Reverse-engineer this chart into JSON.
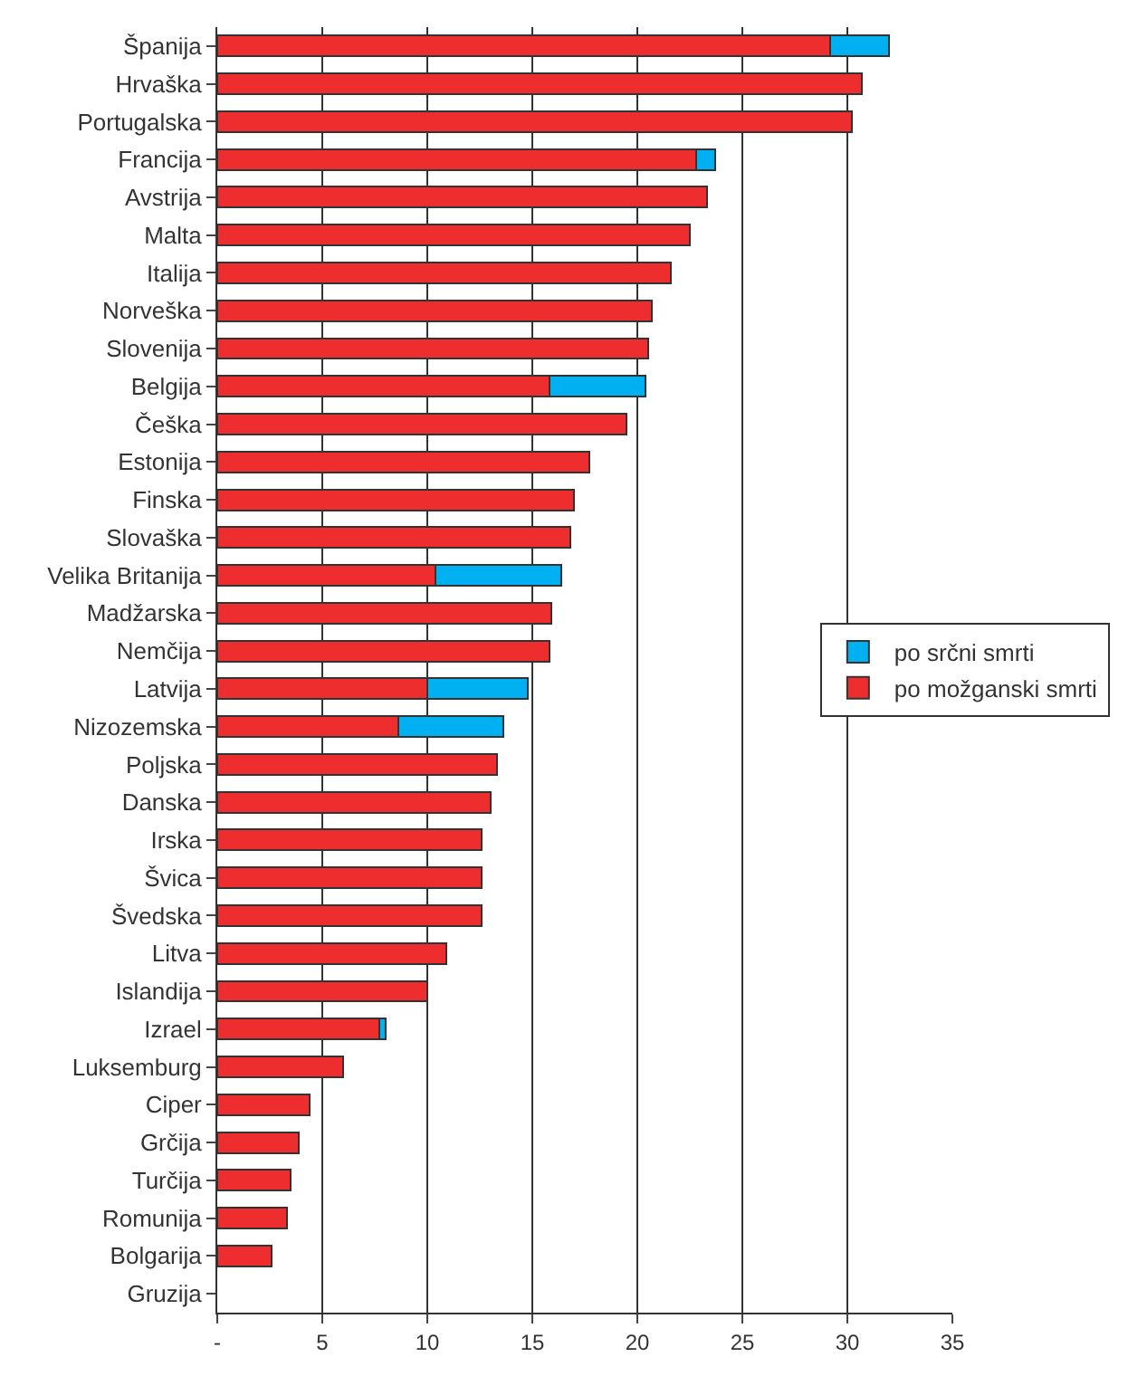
{
  "chart_data": {
    "type": "bar",
    "orientation": "horizontal",
    "stacked": true,
    "categories": [
      "Španija",
      "Hrvaška",
      "Portugalska",
      "Francija",
      "Avstrija",
      "Malta",
      "Italija",
      "Norveška",
      "Slovenija",
      "Belgija",
      "Češka",
      "Estonija",
      "Finska",
      "Slovaška",
      "Velika Britanija",
      "Madžarska",
      "Nemčija",
      "Latvija",
      "Nizozemska",
      "Poljska",
      "Danska",
      "Irska",
      "Švica",
      "Švedska",
      "Litva",
      "Islandija",
      "Izrael",
      "Luksemburg",
      "Ciper",
      "Grčija",
      "Turčija",
      "Romunija",
      "Bolgarija",
      "Gruzija"
    ],
    "series": [
      {
        "name": "po možganski smrti",
        "color": "#ee2e2e",
        "values": [
          29.2,
          30.7,
          30.2,
          22.8,
          23.3,
          22.5,
          21.6,
          20.7,
          20.5,
          15.8,
          19.5,
          17.7,
          17.0,
          16.8,
          10.4,
          15.9,
          15.8,
          10.0,
          8.6,
          13.3,
          13.0,
          12.6,
          12.6,
          12.6,
          10.9,
          10.0,
          7.7,
          6.0,
          4.4,
          3.9,
          3.5,
          3.3,
          2.6,
          null
        ]
      },
      {
        "name": "po srčni smrti",
        "color": "#00b0f0",
        "values": [
          2.8,
          null,
          null,
          0.9,
          null,
          null,
          null,
          null,
          null,
          4.6,
          null,
          null,
          null,
          null,
          6.0,
          null,
          null,
          4.8,
          5.0,
          null,
          null,
          null,
          null,
          null,
          null,
          null,
          0.3,
          null,
          null,
          null,
          null,
          null,
          null,
          null
        ]
      }
    ],
    "xlim": [
      0,
      35
    ],
    "xticks": [
      {
        "value": 0,
        "label": "-"
      },
      5,
      10,
      15,
      20,
      25,
      30,
      35
    ],
    "grid": "x",
    "legend": "right"
  }
}
